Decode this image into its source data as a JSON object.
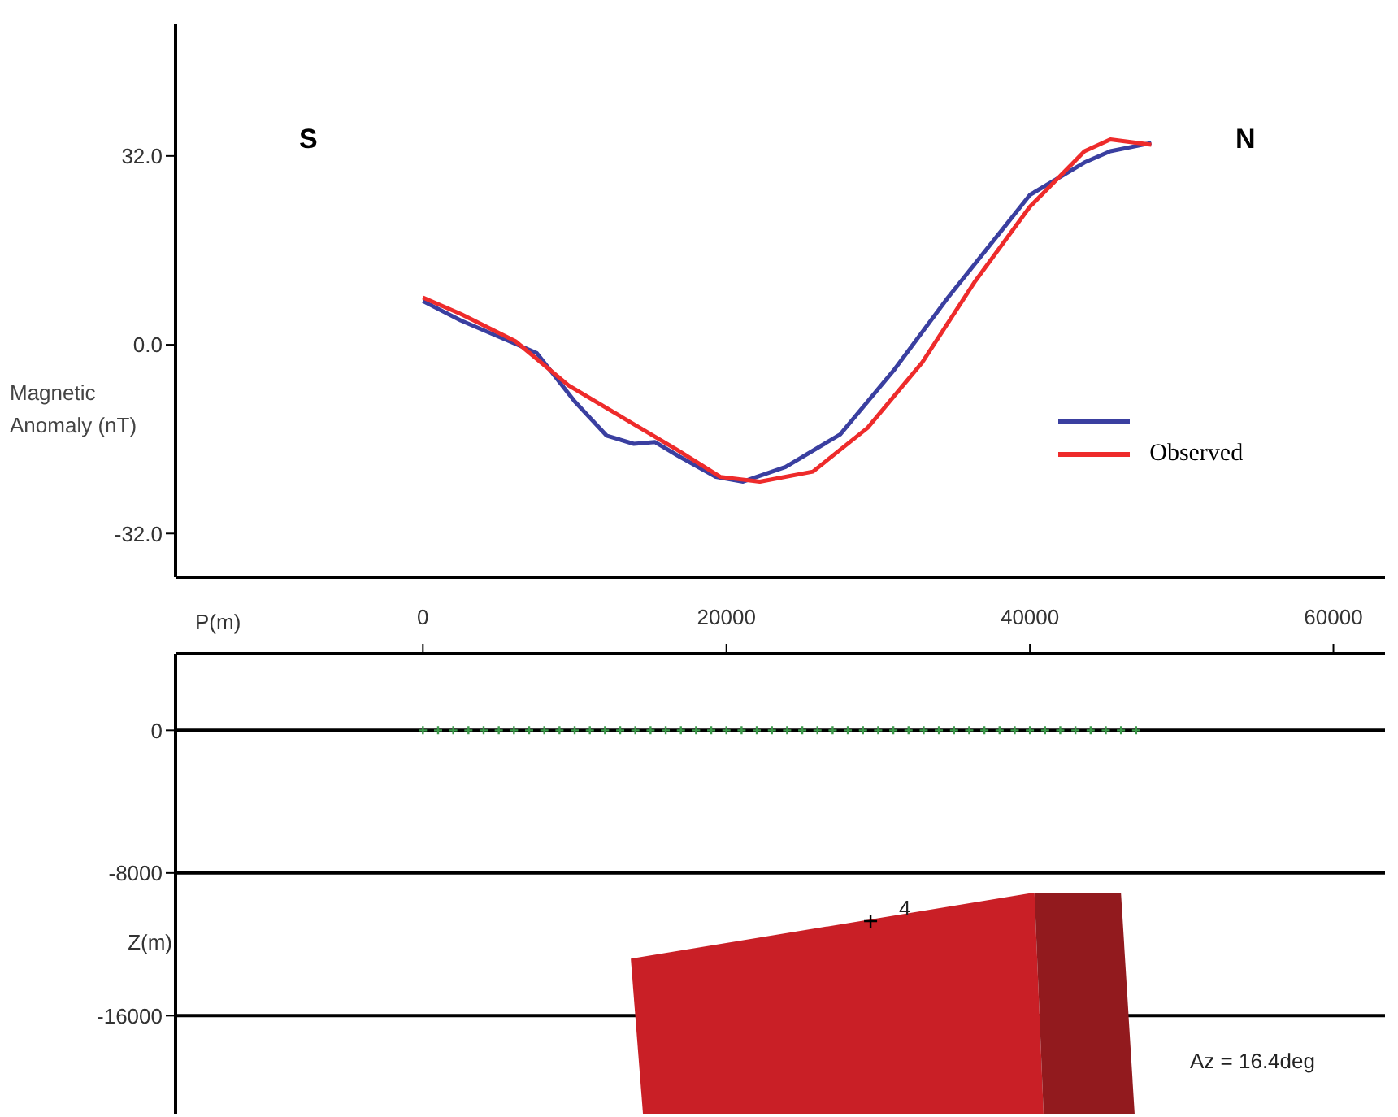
{
  "chart_data": [
    {
      "type": "line",
      "tick_labels": "y",
      "ylabel": "Magnetic Anomaly (nT)",
      "xlim": [
        -16300,
        63400
      ],
      "xticks": [
        0,
        20000,
        40000,
        60000
      ],
      "ylim": [
        -39.4,
        54.3
      ],
      "yticks": [
        {
          "value": 32,
          "label": "32.0"
        },
        {
          "value": 0,
          "label": "0.0"
        },
        {
          "value": -32,
          "label": "-32.0"
        }
      ],
      "grid": false,
      "legend": "right",
      "marker": "none",
      "line_style": "solid",
      "annotations": [
        "S",
        "N"
      ],
      "series": [
        {
          "color": "#3a3fa0",
          "x": [
            0,
            2500,
            5700,
            7500,
            8600,
            10000,
            12100,
            13900,
            15300,
            16800,
            19300,
            21100,
            23900,
            27500,
            31100,
            34600,
            38300,
            40000,
            43600,
            45300,
            48000
          ],
          "values": [
            7.4,
            4.1,
            0.6,
            -1.4,
            -5,
            -9.6,
            -15.4,
            -16.8,
            -16.5,
            -18.8,
            -22.4,
            -23.2,
            -20.7,
            -15.2,
            -4.1,
            8,
            19.9,
            25.4,
            30.9,
            32.8,
            34.2
          ]
        },
        {
          "name": "Observed",
          "color": "#ee2b2b",
          "x": [
            0,
            2500,
            6100,
            9600,
            13200,
            16800,
            19600,
            22200,
            25700,
            29300,
            32900,
            36400,
            40000,
            43600,
            45300,
            48000
          ],
          "values": [
            8,
            5.2,
            0.6,
            -6.9,
            -12.4,
            -17.9,
            -22.4,
            -23.2,
            -21.5,
            -14.1,
            -3,
            10.8,
            23.4,
            32.8,
            34.8,
            33.9
          ]
        }
      ]
    },
    {
      "type": "scatter",
      "marker": "cross",
      "xlabel": "P(m)",
      "ylabel": "Z(m)",
      "series": [
        {
          "color": "#3c9a4a",
          "x": [
            0,
            1000,
            2000,
            3000,
            4000,
            5000,
            6000,
            7000,
            8000,
            9000,
            10000,
            11000,
            12000,
            13000,
            14000,
            15000,
            16000,
            17000,
            18000,
            19000,
            20000,
            21000,
            22000,
            23000,
            24000,
            25000,
            26000,
            27000,
            28000,
            29000,
            30000,
            31000,
            32000,
            33000,
            34000,
            35000,
            36000,
            37000,
            38000,
            39000,
            40000,
            41000,
            42000,
            43000,
            44000,
            45000,
            46000,
            47000
          ],
          "values": [
            0,
            0,
            0,
            0,
            0,
            0,
            0,
            0,
            0,
            0,
            0,
            0,
            0,
            0,
            0,
            0,
            0,
            0,
            0,
            0,
            0,
            0,
            0,
            0,
            0,
            0,
            0,
            0,
            0,
            0,
            0,
            0,
            0,
            0,
            0,
            0,
            0,
            0,
            0,
            0,
            0,
            0,
            0,
            0,
            0,
            0,
            0,
            0
          ]
        }
      ],
      "xlim": [
        -16300,
        63400
      ],
      "xticks": [
        0,
        20000,
        40000,
        60000
      ],
      "ylim": [
        -21500,
        4300
      ],
      "yticks": [
        0,
        -8000,
        -16000
      ],
      "annotations": [
        "4",
        "Az = 16.4deg"
      ],
      "ref_lines": [
        {
          "axis": "y",
          "value": 0,
          "color": "#000000"
        },
        {
          "axis": "y",
          "value": -8000,
          "color": "#000000"
        },
        {
          "axis": "y",
          "value": -16000,
          "color": "#000000"
        }
      ]
    }
  ]
}
